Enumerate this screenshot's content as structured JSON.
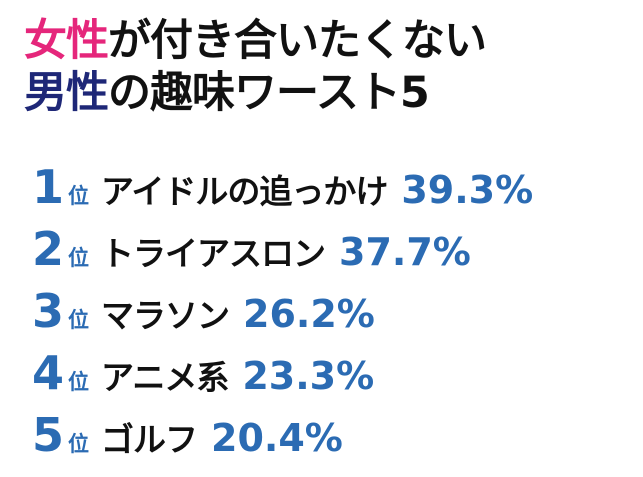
{
  "title": {
    "lines": [
      {
        "highlight": "女性",
        "rest": "が付き合いたくない"
      },
      {
        "highlight": "男性",
        "rest": "の趣味ワースト5"
      }
    ]
  },
  "ranking": {
    "suffix": "位",
    "items": [
      {
        "rank": "1",
        "name": "アイドルの追っかけ",
        "percent": "39.3%"
      },
      {
        "rank": "2",
        "name": "トライアスロン",
        "percent": "37.7%"
      },
      {
        "rank": "3",
        "name": "マラソン",
        "percent": "26.2%"
      },
      {
        "rank": "4",
        "name": "アニメ系",
        "percent": "23.3%"
      },
      {
        "rank": "5",
        "name": "ゴルフ",
        "percent": "20.4%"
      }
    ]
  }
}
